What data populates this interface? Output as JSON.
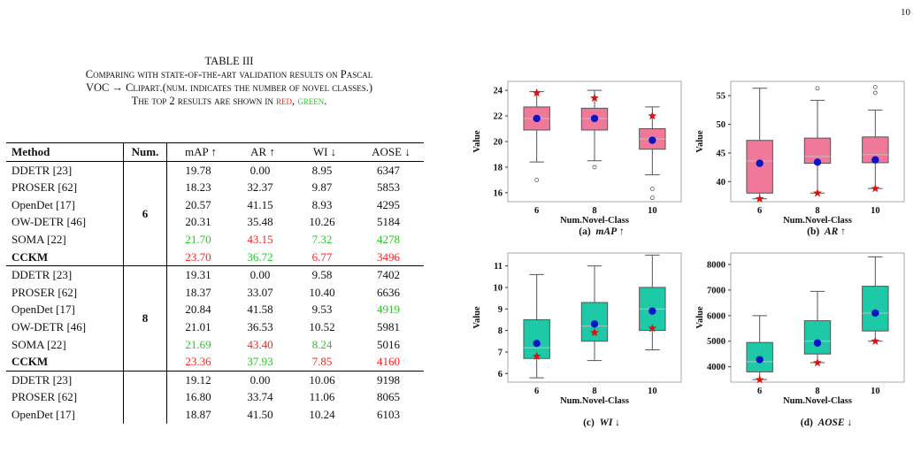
{
  "page_number": "10",
  "caption": {
    "label": "TABLE III",
    "line1": "Comparing with state-of-the-art validation results on Pascal",
    "line2": "VOC → Clipart.(num. indicates the number of novel classes.)",
    "line3_prefix": "The top 2 results are shown in",
    "red_word": "red",
    "sep": ",",
    "green_word": "green",
    "end": "."
  },
  "table": {
    "headers": [
      "Method",
      "Num.",
      "mAP ↑",
      "AR ↑",
      "WI ↓",
      "AOSE ↓"
    ],
    "groups": [
      {
        "num": "6",
        "rows": [
          {
            "method": "DDETR [23]",
            "bold": false,
            "cells": [
              {
                "v": "19.78",
                "c": ""
              },
              {
                "v": "0.00",
                "c": ""
              },
              {
                "v": "8.95",
                "c": ""
              },
              {
                "v": "6347",
                "c": ""
              }
            ]
          },
          {
            "method": "PROSER [62]",
            "bold": false,
            "cells": [
              {
                "v": "18.23",
                "c": ""
              },
              {
                "v": "32.37",
                "c": ""
              },
              {
                "v": "9.87",
                "c": ""
              },
              {
                "v": "5853",
                "c": ""
              }
            ]
          },
          {
            "method": "OpenDet [17]",
            "bold": false,
            "cells": [
              {
                "v": "20.57",
                "c": ""
              },
              {
                "v": "41.15",
                "c": ""
              },
              {
                "v": "8.93",
                "c": ""
              },
              {
                "v": "4295",
                "c": ""
              }
            ]
          },
          {
            "method": "OW-DETR [46]",
            "bold": false,
            "cells": [
              {
                "v": "20.31",
                "c": ""
              },
              {
                "v": "35.48",
                "c": ""
              },
              {
                "v": "10.26",
                "c": ""
              },
              {
                "v": "5184",
                "c": ""
              }
            ]
          },
          {
            "method": "SOMA [22]",
            "bold": false,
            "cells": [
              {
                "v": "21.70",
                "c": "green"
              },
              {
                "v": "43.15",
                "c": "red"
              },
              {
                "v": "7.32",
                "c": "green"
              },
              {
                "v": "4278",
                "c": "green"
              }
            ]
          },
          {
            "method": "CCKM",
            "bold": true,
            "cells": [
              {
                "v": "23.70",
                "c": "red"
              },
              {
                "v": "36.72",
                "c": "green"
              },
              {
                "v": "6.77",
                "c": "red"
              },
              {
                "v": "3496",
                "c": "red"
              }
            ]
          }
        ]
      },
      {
        "num": "8",
        "rows": [
          {
            "method": "DDETR [23]",
            "bold": false,
            "cells": [
              {
                "v": "19.31",
                "c": ""
              },
              {
                "v": "0.00",
                "c": ""
              },
              {
                "v": "9.58",
                "c": ""
              },
              {
                "v": "7402",
                "c": ""
              }
            ]
          },
          {
            "method": "PROSER [62]",
            "bold": false,
            "cells": [
              {
                "v": "18.37",
                "c": ""
              },
              {
                "v": "33.07",
                "c": ""
              },
              {
                "v": "10.40",
                "c": ""
              },
              {
                "v": "6636",
                "c": ""
              }
            ]
          },
          {
            "method": "OpenDet [17]",
            "bold": false,
            "cells": [
              {
                "v": "20.84",
                "c": ""
              },
              {
                "v": "41.58",
                "c": ""
              },
              {
                "v": "9.53",
                "c": ""
              },
              {
                "v": "4919",
                "c": "green"
              }
            ]
          },
          {
            "method": "OW-DETR [46]",
            "bold": false,
            "cells": [
              {
                "v": "21.01",
                "c": ""
              },
              {
                "v": "36.53",
                "c": ""
              },
              {
                "v": "10.52",
                "c": ""
              },
              {
                "v": "5981",
                "c": ""
              }
            ]
          },
          {
            "method": "SOMA [22]",
            "bold": false,
            "cells": [
              {
                "v": "21.69",
                "c": "green"
              },
              {
                "v": "43.40",
                "c": "red"
              },
              {
                "v": "8.24",
                "c": "green"
              },
              {
                "v": "5016",
                "c": ""
              }
            ]
          },
          {
            "method": "CCKM",
            "bold": true,
            "cells": [
              {
                "v": "23.36",
                "c": "red"
              },
              {
                "v": "37.93",
                "c": "green"
              },
              {
                "v": "7.85",
                "c": "red"
              },
              {
                "v": "4160",
                "c": "red"
              }
            ]
          }
        ]
      },
      {
        "num": "",
        "rows": [
          {
            "method": "DDETR [23]",
            "bold": false,
            "cells": [
              {
                "v": "19.12",
                "c": ""
              },
              {
                "v": "0.00",
                "c": ""
              },
              {
                "v": "10.06",
                "c": ""
              },
              {
                "v": "9198",
                "c": ""
              }
            ]
          },
          {
            "method": "PROSER [62]",
            "bold": false,
            "cells": [
              {
                "v": "16.80",
                "c": ""
              },
              {
                "v": "33.74",
                "c": ""
              },
              {
                "v": "11.06",
                "c": ""
              },
              {
                "v": "8065",
                "c": ""
              }
            ]
          },
          {
            "method": "OpenDet [17]",
            "bold": false,
            "cells": [
              {
                "v": "18.87",
                "c": ""
              },
              {
                "v": "41.50",
                "c": ""
              },
              {
                "v": "10.24",
                "c": ""
              },
              {
                "v": "6103",
                "c": ""
              }
            ]
          }
        ]
      }
    ]
  },
  "chart_data": [
    {
      "type": "box",
      "caption_label": "(a)",
      "caption_metric": "mAP",
      "caption_arrow": "↑",
      "xlabel": "Num.Novel-Class",
      "ylabel": "Value",
      "categories": [
        "6",
        "8",
        "10"
      ],
      "yticks": [
        16,
        18,
        20,
        22,
        24
      ],
      "ylim": [
        15.3,
        24.7
      ],
      "box_color": "#f07898",
      "boxes": [
        {
          "whisker_low": 18.4,
          "q1": 20.9,
          "median": 21.8,
          "q3": 22.7,
          "whisker_high": 23.9,
          "mean": 21.8,
          "marker": 23.8,
          "outliers": [
            17.0
          ]
        },
        {
          "whisker_low": 18.5,
          "q1": 20.9,
          "median": 21.8,
          "q3": 22.6,
          "whisker_high": 24.0,
          "mean": 21.8,
          "marker": 23.4,
          "outliers": [
            18.0
          ]
        },
        {
          "whisker_low": 17.4,
          "q1": 19.4,
          "median": 20.2,
          "q3": 21.0,
          "whisker_high": 22.7,
          "mean": 20.1,
          "marker": 22.0,
          "outliers": [
            16.3,
            15.6
          ]
        }
      ]
    },
    {
      "type": "box",
      "caption_label": "(b)",
      "caption_metric": "AR",
      "caption_arrow": "↑",
      "xlabel": "Num.Novel-Class",
      "ylabel": "Value",
      "categories": [
        "6",
        "8",
        "10"
      ],
      "yticks": [
        40,
        45,
        50,
        55
      ],
      "ylim": [
        36.5,
        57.5
      ],
      "box_color": "#f07898",
      "boxes": [
        {
          "whisker_low": 37.0,
          "q1": 38.0,
          "median": 43.6,
          "q3": 47.2,
          "whisker_high": 56.3,
          "mean": 43.2,
          "marker": 37.0,
          "outliers": []
        },
        {
          "whisker_low": 38.0,
          "q1": 43.2,
          "median": 44.4,
          "q3": 47.6,
          "whisker_high": 54.2,
          "mean": 43.4,
          "marker": 38.0,
          "outliers": [
            56.3
          ]
        },
        {
          "whisker_low": 38.8,
          "q1": 43.3,
          "median": 44.7,
          "q3": 47.8,
          "whisker_high": 52.5,
          "mean": 43.8,
          "marker": 38.8,
          "outliers": [
            55.5,
            56.5
          ]
        }
      ]
    },
    {
      "type": "box",
      "caption_label": "(c)",
      "caption_metric": "WI",
      "caption_arrow": "↓",
      "xlabel": "Num.Novel-Class",
      "ylabel": "Value",
      "categories": [
        "6",
        "8",
        "10"
      ],
      "yticks": [
        6,
        7,
        8,
        9,
        10,
        11
      ],
      "ylim": [
        5.6,
        11.6
      ],
      "box_color": "#1ec9a8",
      "boxes": [
        {
          "whisker_low": 5.8,
          "q1": 6.7,
          "median": 7.2,
          "q3": 8.5,
          "whisker_high": 10.6,
          "mean": 7.4,
          "marker": 6.8,
          "outliers": []
        },
        {
          "whisker_low": 6.6,
          "q1": 7.5,
          "median": 8.2,
          "q3": 9.3,
          "whisker_high": 11.0,
          "mean": 8.3,
          "marker": 7.9,
          "outliers": []
        },
        {
          "whisker_low": 7.1,
          "q1": 8.0,
          "median": 9.0,
          "q3": 10.0,
          "whisker_high": 11.5,
          "mean": 8.9,
          "marker": 8.1,
          "outliers": []
        }
      ]
    },
    {
      "type": "box",
      "caption_label": "(d)",
      "caption_metric": "AOSE",
      "caption_arrow": "↓",
      "xlabel": "Num.Novel-Class",
      "ylabel": "Value",
      "categories": [
        "6",
        "8",
        "10"
      ],
      "yticks": [
        4000,
        5000,
        6000,
        7000,
        8000
      ],
      "ylim": [
        3400,
        8450
      ],
      "box_color": "#1ec9a8",
      "boxes": [
        {
          "whisker_low": 3500,
          "q1": 3800,
          "median": 4200,
          "q3": 4950,
          "whisker_high": 6000,
          "mean": 4280,
          "marker": 3496,
          "outliers": []
        },
        {
          "whisker_low": 4160,
          "q1": 4500,
          "median": 5000,
          "q3": 5800,
          "whisker_high": 6950,
          "mean": 4930,
          "marker": 4160,
          "outliers": []
        },
        {
          "whisker_low": 5000,
          "q1": 5400,
          "median": 6100,
          "q3": 7150,
          "whisker_high": 8300,
          "mean": 6100,
          "marker": 5000,
          "outliers": []
        }
      ]
    }
  ]
}
